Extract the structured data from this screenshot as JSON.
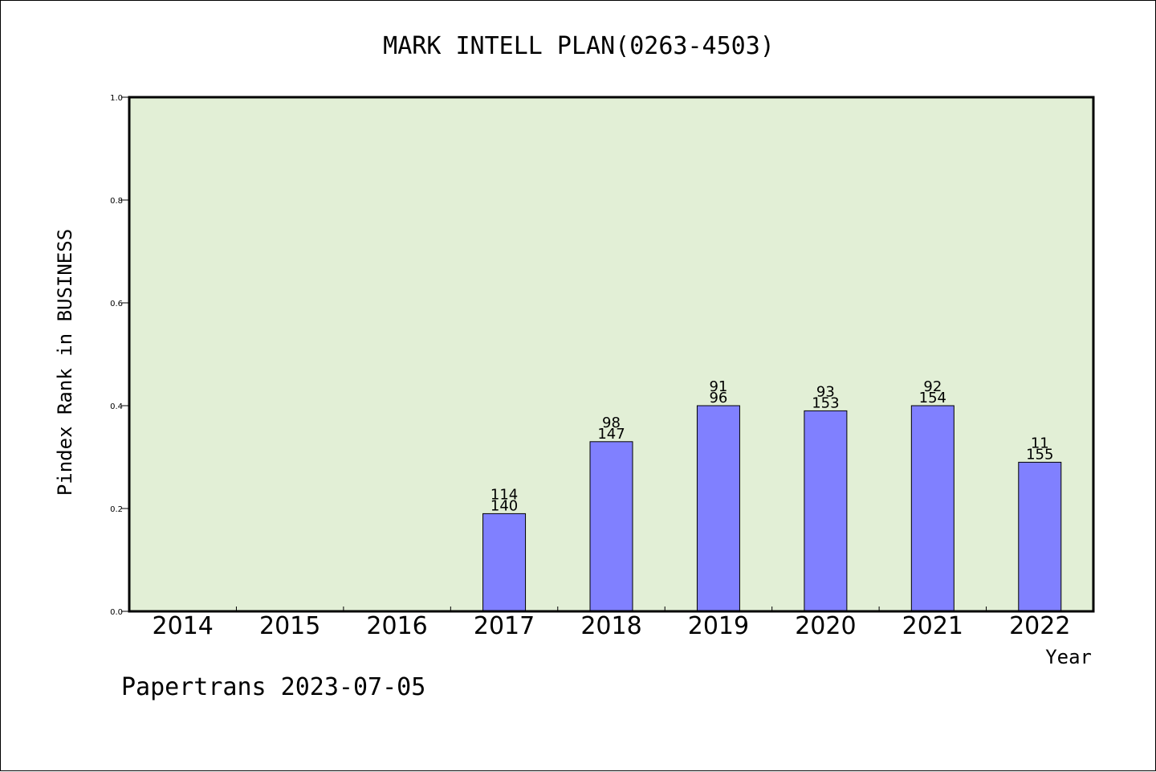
{
  "chart_data": {
    "type": "bar",
    "title": "MARK INTELL PLAN(0263-4503)",
    "xlabel": "Year",
    "ylabel": "Pindex Rank in BUSINESS",
    "ylim": [
      0,
      1.0
    ],
    "yticks": [
      "0.0",
      "0.2",
      "0.4",
      "0.6",
      "0.8",
      "1.0"
    ],
    "categories": [
      "2014",
      "2015",
      "2016",
      "2017",
      "2018",
      "2019",
      "2020",
      "2021",
      "2022"
    ],
    "values": [
      null,
      null,
      null,
      0.19,
      0.33,
      0.4,
      0.39,
      0.4,
      0.29
    ],
    "labels_top": [
      "",
      "",
      "",
      "114",
      "98",
      "91",
      "93",
      "92",
      "11"
    ],
    "labels_bottom": [
      "",
      "",
      "",
      "140",
      "147",
      "96",
      "153",
      "154",
      "155"
    ],
    "grid": false,
    "colors": {
      "plot_background": "#e2efd6",
      "bar_fill": "#8080ff",
      "bar_stroke": "#000000"
    }
  },
  "footer": "Papertrans 2023-07-05"
}
